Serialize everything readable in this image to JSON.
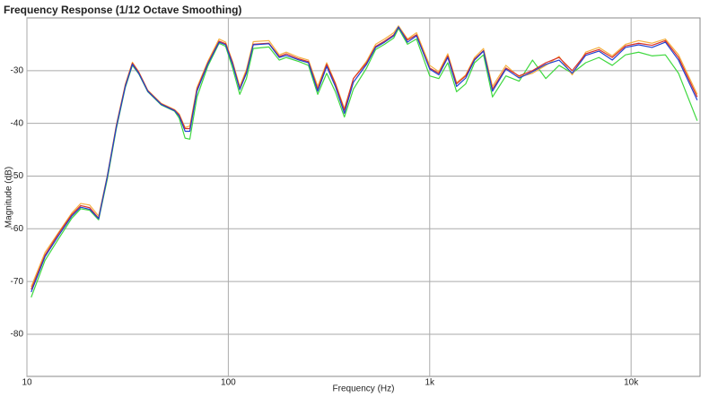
{
  "chart_data": {
    "type": "line",
    "title": "Frequency Response (1/12 Octave Smoothing)",
    "x_label": "Frequency (Hz)",
    "y_label": "Magnitude (dB)",
    "xscale": "log",
    "grid": true,
    "xlim": [
      10,
      22000
    ],
    "ylim": [
      -88,
      -20
    ],
    "xticks": [
      10,
      100,
      {
        "value": 1000,
        "label": "1k"
      },
      {
        "value": 10000,
        "label": "10k"
      }
    ],
    "yticks": [
      -80,
      -70,
      -60,
      -50,
      -40,
      -30
    ],
    "x": [
      10.5,
      12.3,
      14.3,
      16.7,
      18.5,
      20.5,
      22.7,
      25.1,
      27.8,
      30.8,
      33.4,
      35.9,
      39.8,
      46.4,
      54.1,
      57,
      61,
      64.4,
      69.9,
      79,
      90,
      97,
      105,
      114,
      123,
      133,
      159,
      179,
      194,
      225,
      250,
      278,
      308,
      340,
      377,
      418,
      486,
      539,
      597,
      663,
      700,
      776,
      860,
      1000,
      1110,
      1230,
      1360,
      1510,
      1670,
      1850,
      2050,
      2390,
      2780,
      3240,
      3770,
      4390,
      5100,
      5950,
      6920,
      8060,
      9380,
      10900,
      12700,
      14800,
      17200,
      21300
    ],
    "series": [
      {
        "color": "#3fd83f",
        "values": [
          -73,
          -66,
          -62,
          -58,
          -56.2,
          -56.5,
          -58.3,
          -50.5,
          -41,
          -33.2,
          -29,
          -30.6,
          -34,
          -36.5,
          -37.7,
          -39,
          -42.8,
          -43,
          -35,
          -29.2,
          -24.8,
          -25.4,
          -29.5,
          -34.5,
          -31.5,
          -25.8,
          -25.5,
          -28,
          -27.5,
          -28.3,
          -29,
          -34.5,
          -30.5,
          -34,
          -38.8,
          -33.5,
          -29.5,
          -26,
          -25,
          -23.8,
          -22,
          -25,
          -24,
          -31,
          -31.5,
          -28.5,
          -34,
          -32.5,
          -28.5,
          -27,
          -35,
          -31,
          -32,
          -28,
          -31.5,
          -29,
          -30.5,
          -28.5,
          -27.5,
          -29,
          -27,
          -26.5,
          -27.2,
          -27,
          -30.5,
          -39.5
        ]
      },
      {
        "color": "#f5b040",
        "values": [
          -71,
          -64.5,
          -60.8,
          -57,
          -55.2,
          -55.5,
          -57.6,
          -49.8,
          -40.3,
          -32.6,
          -28.4,
          -30.2,
          -33.7,
          -36.2,
          -37.4,
          -38.2,
          -40.8,
          -40.5,
          -33.2,
          -28.3,
          -24,
          -24.6,
          -28.3,
          -33,
          -29.8,
          -24.5,
          -24.3,
          -27,
          -26.5,
          -27.5,
          -28,
          -33,
          -28.5,
          -32.3,
          -37.2,
          -31.5,
          -28.2,
          -25,
          -24,
          -22.8,
          -21.5,
          -24,
          -22.8,
          -29,
          -30.2,
          -26.8,
          -32.3,
          -30.8,
          -27.5,
          -25.8,
          -33,
          -29,
          -31.2,
          -30.5,
          -29,
          -27.3,
          -30.8,
          -26.5,
          -25.6,
          -27.2,
          -25,
          -24.3,
          -24.8,
          -24,
          -27,
          -34.5
        ]
      },
      {
        "color": "#d9302a",
        "values": [
          -71.5,
          -65,
          -61,
          -57.3,
          -55.6,
          -56,
          -58,
          -50,
          -40.5,
          -32.8,
          -28.6,
          -30.3,
          -33.8,
          -36.3,
          -37.5,
          -38.4,
          -41,
          -41,
          -33.5,
          -28.6,
          -24.4,
          -24.9,
          -28.5,
          -33.4,
          -30.2,
          -25,
          -24.8,
          -27.3,
          -26.8,
          -27.8,
          -28.3,
          -33.5,
          -28.8,
          -32.5,
          -37.5,
          -31.5,
          -28.5,
          -25.4,
          -24.4,
          -23.2,
          -21.8,
          -24.2,
          -23.2,
          -29.5,
          -30.5,
          -27.2,
          -32.5,
          -31,
          -27.8,
          -26.2,
          -33.5,
          -29.5,
          -31,
          -30,
          -28.5,
          -27.5,
          -30,
          -26.8,
          -26,
          -27.5,
          -25.3,
          -24.8,
          -25.2,
          -24.3,
          -27.5,
          -35
        ]
      },
      {
        "color": "#2040d0",
        "values": [
          -72,
          -65.3,
          -61.4,
          -57.6,
          -55.9,
          -56.3,
          -58.1,
          -50,
          -40.7,
          -33,
          -28.8,
          -30.5,
          -33.9,
          -36.4,
          -37.6,
          -38.6,
          -41.5,
          -41.5,
          -33.9,
          -28.8,
          -24.6,
          -25.1,
          -28.8,
          -33.6,
          -30.5,
          -25.1,
          -24.9,
          -27.5,
          -27.1,
          -28,
          -28.5,
          -33.9,
          -29.2,
          -33,
          -38.1,
          -32.2,
          -28.8,
          -25.6,
          -24.6,
          -23.4,
          -21.7,
          -24.6,
          -23.4,
          -29.7,
          -30.8,
          -27.5,
          -33,
          -31.4,
          -28,
          -26.3,
          -33.9,
          -29.7,
          -31.4,
          -30.2,
          -28.8,
          -28,
          -30.5,
          -27.1,
          -26.3,
          -28,
          -25.6,
          -25.1,
          -25.6,
          -24.6,
          -28,
          -35.6
        ]
      }
    ]
  }
}
